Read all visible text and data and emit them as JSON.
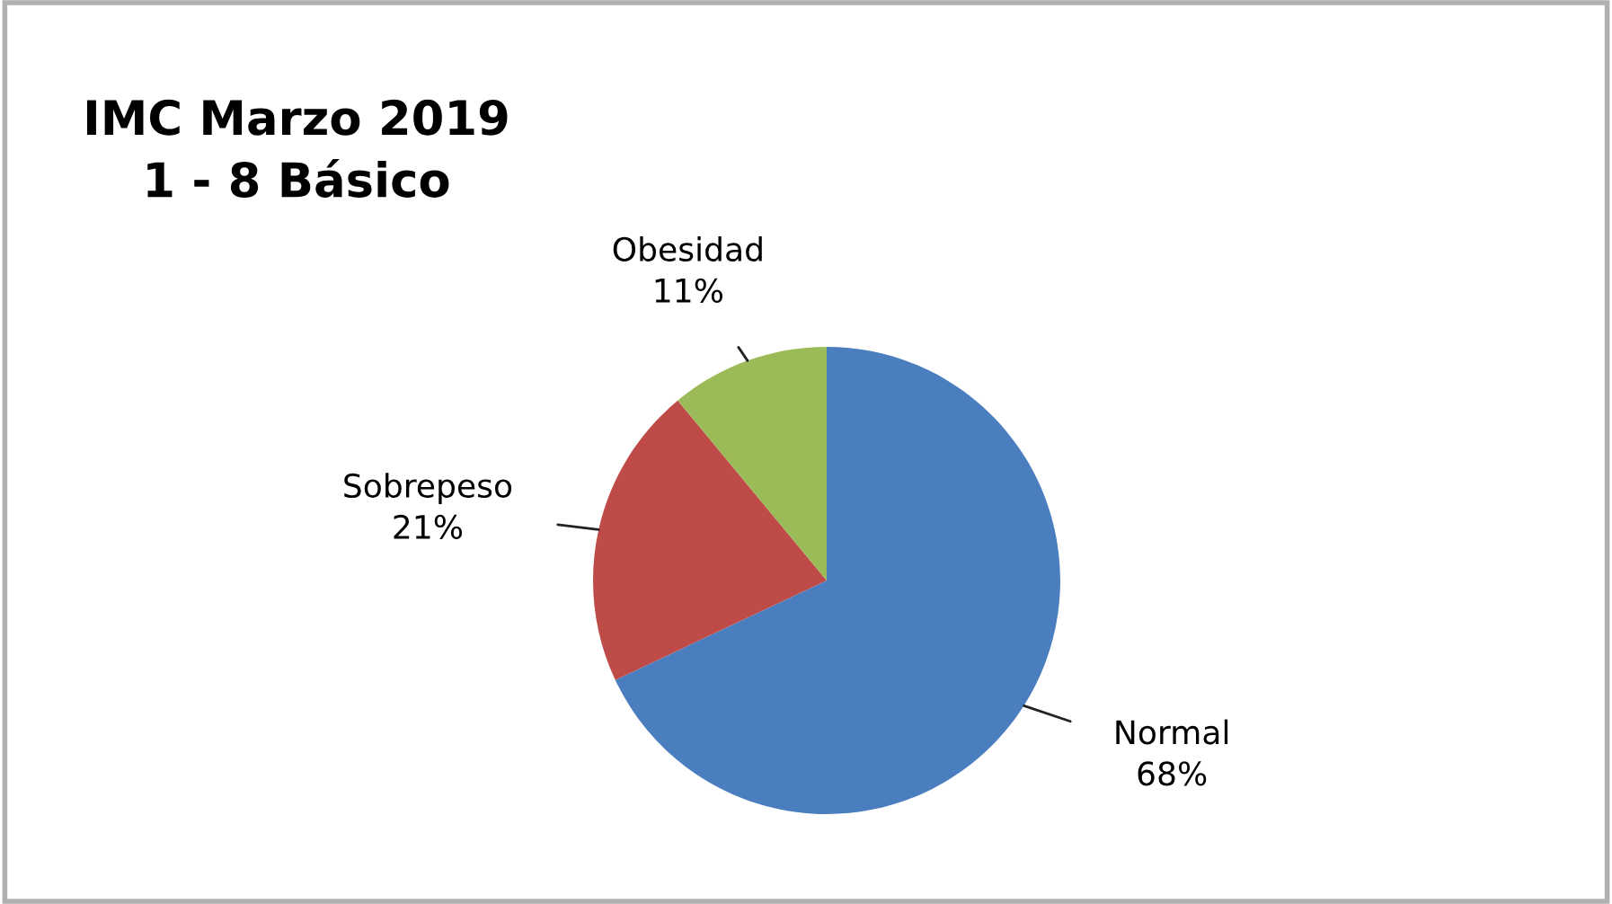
{
  "chart_data": {
    "type": "pie",
    "title": "IMC Marzo 2019\n1 - 8 Básico",
    "categories": [
      "Normal",
      "Sobrepeso",
      "Obesidad"
    ],
    "values": [
      68,
      21,
      11
    ],
    "colors": [
      "#4a7ebf",
      "#be4b48",
      "#9bbb59"
    ],
    "value_labels": [
      "68%",
      "21%",
      "11%"
    ],
    "legend": false
  }
}
